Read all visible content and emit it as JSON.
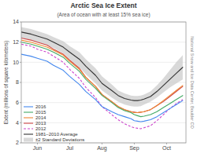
{
  "chart_data": {
    "type": "line",
    "title": "Arctic Sea Ice Extent",
    "subtitle": "(Area of ocean with at least 15% sea ice)",
    "ylabel": "Extent (millions of square kilometers)",
    "annotations": [
      "National Snow and Ice Data Center, Boulder CO"
    ],
    "x": [
      5.5,
      5.8,
      6.0,
      6.3,
      6.5,
      6.8,
      7.0,
      7.3,
      7.5,
      7.8,
      8.0,
      8.3,
      8.5,
      8.7,
      8.9,
      9.0,
      9.1,
      9.2,
      9.3,
      9.5,
      9.7,
      9.9,
      10.1,
      10.3,
      10.5
    ],
    "xlim": [
      5.5,
      10.6
    ],
    "xticks": [
      {
        "value": 6,
        "label": "Jun"
      },
      {
        "value": 7,
        "label": "Jul"
      },
      {
        "value": 8,
        "label": "Aug"
      },
      {
        "value": 9,
        "label": "Sep"
      },
      {
        "value": 10,
        "label": "Oct"
      }
    ],
    "ylim": [
      2,
      14
    ],
    "yticks": [
      2,
      4,
      6,
      8,
      10,
      12,
      14
    ],
    "grid": true,
    "legend": "lower left",
    "series": [
      {
        "name": "2016",
        "color": "#4488EE",
        "line_style": "solid",
        "values": [
          10.8,
          10.6,
          10.4,
          10.1,
          9.7,
          9.2,
          8.6,
          7.8,
          7.1,
          6.3,
          5.6,
          5.1,
          4.8,
          4.6,
          4.4,
          4.2,
          4.15,
          4.1,
          4.15,
          4.3,
          4.6,
          5.0,
          5.4,
          5.8,
          6.2
        ]
      },
      {
        "name": "2015",
        "color": "#44AA66",
        "line_style": "solid",
        "values": [
          12.0,
          11.8,
          11.6,
          11.3,
          11.0,
          10.5,
          9.9,
          9.1,
          8.3,
          7.4,
          6.7,
          6.0,
          5.5,
          5.2,
          5.0,
          4.8,
          4.7,
          4.6,
          4.65,
          4.8,
          5.1,
          5.5,
          5.9,
          6.3,
          6.7
        ]
      },
      {
        "name": "2014",
        "color": "#EE8833",
        "line_style": "solid",
        "values": [
          12.2,
          12.0,
          11.8,
          11.5,
          11.2,
          10.7,
          10.1,
          9.3,
          8.5,
          7.6,
          6.8,
          6.1,
          5.6,
          5.3,
          5.1,
          5.0,
          5.0,
          5.05,
          5.1,
          5.3,
          5.7,
          6.2,
          6.7,
          7.2,
          7.7
        ]
      },
      {
        "name": "2013",
        "color": "#CC4444",
        "line_style": "solid",
        "values": [
          12.4,
          12.2,
          12.0,
          11.7,
          11.3,
          10.8,
          10.2,
          9.4,
          8.5,
          7.6,
          6.8,
          6.1,
          5.6,
          5.3,
          5.1,
          5.05,
          5.0,
          5.05,
          5.1,
          5.3,
          5.7,
          6.1,
          6.6,
          7.1,
          7.6
        ]
      },
      {
        "name": "2012",
        "color": "#CC44CC",
        "line_style": "dashed",
        "values": [
          11.8,
          11.6,
          11.3,
          11.0,
          10.6,
          10.0,
          9.3,
          8.4,
          7.5,
          6.5,
          5.6,
          4.8,
          4.3,
          3.9,
          3.6,
          3.5,
          3.45,
          3.4,
          3.5,
          3.7,
          4.2,
          4.8,
          5.4,
          5.9,
          6.3
        ]
      },
      {
        "name": "1981–2010 Average",
        "color": "#333333",
        "line_style": "solid",
        "values": [
          13.0,
          12.8,
          12.6,
          12.3,
          12.0,
          11.5,
          11.0,
          10.3,
          9.6,
          8.7,
          7.9,
          7.2,
          6.7,
          6.4,
          6.25,
          6.2,
          6.2,
          6.25,
          6.35,
          6.6,
          7.1,
          7.7,
          8.3,
          8.9,
          9.5
        ]
      },
      {
        "name": "±2 Standard Deviations",
        "type": "band",
        "color": "#CCCCCC",
        "upper": [
          13.5,
          13.3,
          13.1,
          12.8,
          12.5,
          12.1,
          11.6,
          11.0,
          10.3,
          9.4,
          8.6,
          7.8,
          7.2,
          6.9,
          6.7,
          6.65,
          6.65,
          6.7,
          6.8,
          7.1,
          7.7,
          8.4,
          9.2,
          10.0,
          10.7
        ],
        "lower": [
          12.4,
          12.2,
          12.0,
          11.7,
          11.4,
          10.9,
          10.3,
          9.5,
          8.8,
          7.9,
          7.2,
          6.5,
          6.1,
          5.8,
          5.65,
          5.6,
          5.6,
          5.65,
          5.8,
          6.1,
          6.5,
          7.0,
          7.5,
          7.9,
          8.3
        ]
      }
    ]
  }
}
